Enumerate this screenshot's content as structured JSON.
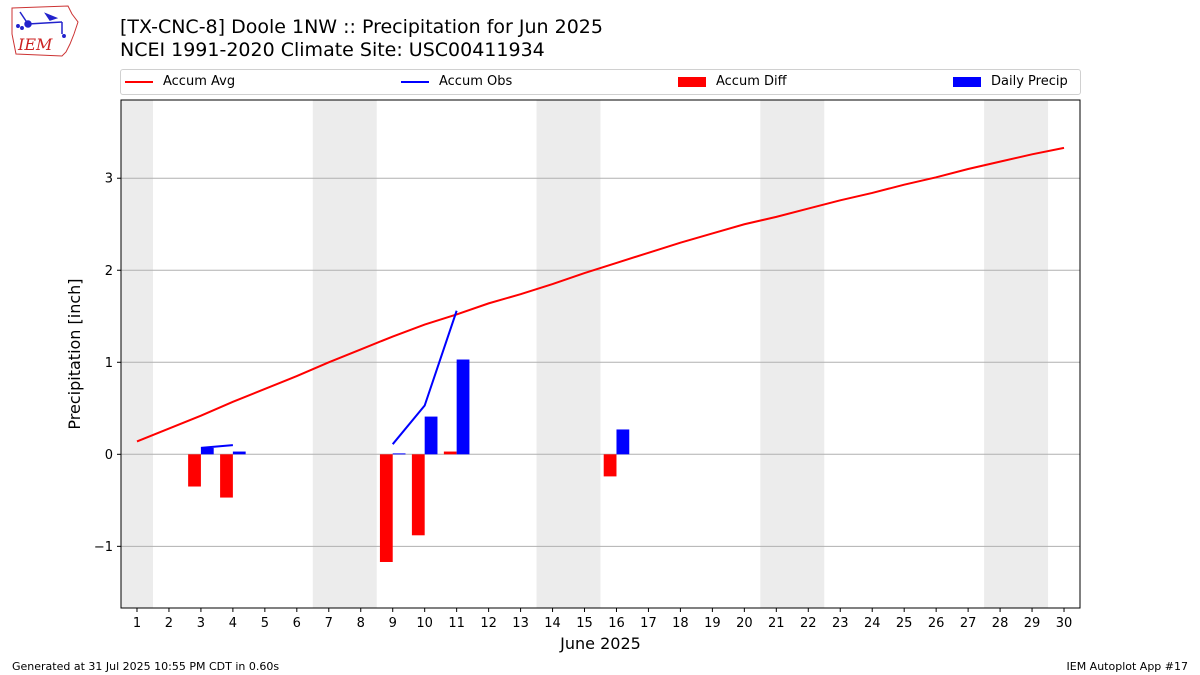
{
  "header": {
    "title_line1": "[TX-CNC-8] Doole 1NW :: Precipitation for Jun 2025",
    "title_line2": "NCEI 1991-2020 Climate Site: USC00411934"
  },
  "logo": {
    "text": "IEM",
    "icon": "iowa-state-weather-logo"
  },
  "footer": {
    "generated": "Generated at 31 Jul 2025 10:55 PM CDT in 0.60s",
    "app": "IEM Autoplot App #17"
  },
  "legend": [
    {
      "label": "Accum Avg",
      "kind": "line",
      "color": "#ff0000"
    },
    {
      "label": "Accum Obs",
      "kind": "line",
      "color": "#0000ff"
    },
    {
      "label": "Accum Diff",
      "kind": "box",
      "color": "#ff0000"
    },
    {
      "label": "Daily Precip",
      "kind": "box",
      "color": "#0000ff"
    }
  ],
  "chart_data": {
    "type": "bar",
    "xlabel": "June 2025",
    "ylabel": "Precipitation [inch]",
    "ylim": [
      -1.67,
      3.85
    ],
    "xlim": [
      0.5,
      30.5
    ],
    "grid": "horizontal",
    "legend_position": "top",
    "x_ticks": [
      1,
      2,
      3,
      4,
      5,
      6,
      7,
      8,
      9,
      10,
      11,
      12,
      13,
      14,
      15,
      16,
      17,
      18,
      19,
      20,
      21,
      22,
      23,
      24,
      25,
      26,
      27,
      28,
      29,
      30
    ],
    "y_ticks": [
      -1,
      0,
      1,
      2,
      3
    ],
    "y_tick_labels": [
      "−1",
      "0",
      "1",
      "2",
      "3"
    ],
    "weekend_shading": [
      [
        0.5,
        1.5
      ],
      [
        6.5,
        8.5
      ],
      [
        13.5,
        15.5
      ],
      [
        20.5,
        22.5
      ],
      [
        27.5,
        29.5
      ]
    ],
    "colors": {
      "avg": "#ff0000",
      "obs": "#0000ff",
      "weekend": "#ececec",
      "grid": "#b0b0b0"
    },
    "series": [
      {
        "name": "Accum Avg",
        "kind": "line",
        "color": "#ff0000",
        "x": [
          1,
          2,
          3,
          4,
          5,
          6,
          7,
          8,
          9,
          10,
          11,
          12,
          13,
          14,
          15,
          16,
          17,
          18,
          19,
          20,
          21,
          22,
          23,
          24,
          25,
          26,
          27,
          28,
          29,
          30
        ],
        "values": [
          0.14,
          0.28,
          0.42,
          0.57,
          0.71,
          0.85,
          1.0,
          1.14,
          1.28,
          1.41,
          1.52,
          1.64,
          1.74,
          1.85,
          1.97,
          2.08,
          2.19,
          2.3,
          2.4,
          2.5,
          2.58,
          2.67,
          2.76,
          2.84,
          2.93,
          3.01,
          3.1,
          3.18,
          3.26,
          3.33
        ]
      },
      {
        "name": "Accum Obs",
        "kind": "line",
        "color": "#0000ff",
        "segments": [
          {
            "x": [
              3,
              4
            ],
            "values": [
              0.07,
              0.1
            ]
          },
          {
            "x": [
              9,
              10,
              11
            ],
            "values": [
              0.11,
              0.53,
              1.56
            ]
          }
        ]
      },
      {
        "name": "Accum Diff",
        "kind": "bar",
        "color": "#ff0000",
        "x": [
          3,
          4,
          9,
          10,
          11,
          16
        ],
        "values": [
          -0.35,
          -0.47,
          -1.17,
          -0.88,
          0.03,
          -0.24
        ]
      },
      {
        "name": "Daily Precip",
        "kind": "bar",
        "color": "#0000ff",
        "x": [
          3,
          4,
          9,
          10,
          11,
          16
        ],
        "values": [
          0.07,
          0.03,
          0.01,
          0.41,
          1.03,
          0.27
        ]
      }
    ]
  }
}
